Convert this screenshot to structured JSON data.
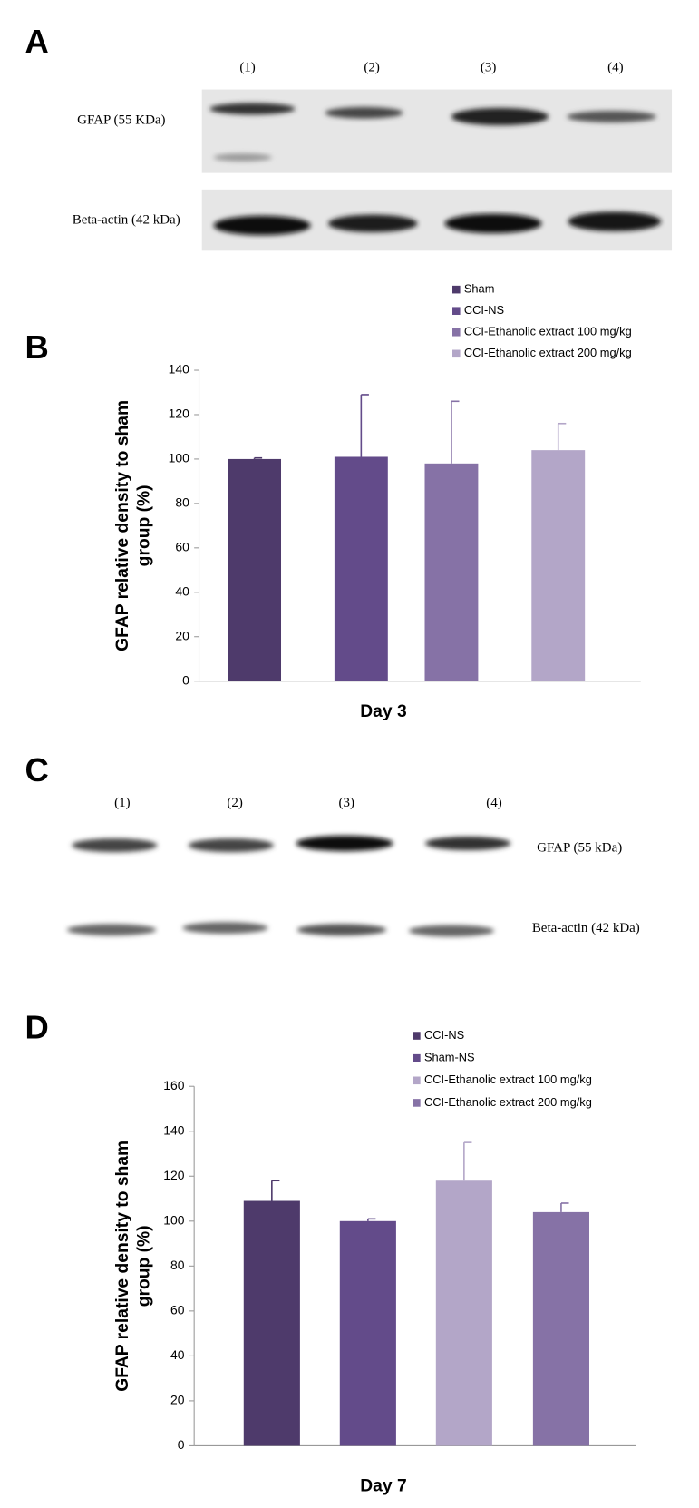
{
  "panels": [
    "A",
    "B",
    "C",
    "D"
  ],
  "blot_a": {
    "lanes": [
      "(1)",
      "(2)",
      "(3)",
      "(4)"
    ],
    "bands": [
      "GFAP (55 KDa)",
      "Beta-actin (42 kDa)"
    ]
  },
  "blot_c": {
    "lanes": [
      "(1)",
      "(2)",
      "(3)",
      "(4)"
    ],
    "bands": [
      "GFAP (55 kDa)",
      "Beta-actin (42 kDa)"
    ]
  },
  "chart_data": [
    {
      "type": "bar",
      "x_label": "Day 3",
      "y_label": [
        "GFAP relative density to sham",
        "group (%)"
      ],
      "categories": [
        null
      ],
      "series": [
        {
          "name": "Sham",
          "color": "#4e3a6b",
          "values": [
            100
          ],
          "errors": [
            0.5
          ]
        },
        {
          "name": "CCI-NS",
          "color": "#634b8a",
          "values": [
            101
          ],
          "errors": [
            28
          ]
        },
        {
          "name": "CCI-Ethanolic extract 100 mg/kg",
          "color": "#8672a6",
          "values": [
            98
          ],
          "errors": [
            28
          ]
        },
        {
          "name": "CCI-Ethanolic extract 200 mg/kg",
          "color": "#b3a6c8",
          "values": [
            104
          ],
          "errors": [
            12
          ]
        }
      ],
      "ylim": [
        0,
        140
      ],
      "yticks": [
        0,
        20,
        40,
        60,
        80,
        100,
        120,
        140
      ]
    },
    {
      "type": "bar",
      "x_label": "Day 7",
      "y_label": [
        "GFAP relative density to sham",
        "group (%)"
      ],
      "categories": [
        null
      ],
      "series": [
        {
          "name": "CCI-NS",
          "color": "#4e3a6b",
          "values": [
            109
          ],
          "errors": [
            9
          ]
        },
        {
          "name": "Sham-NS",
          "color": "#634b8a",
          "values": [
            100
          ],
          "errors": [
            1
          ]
        },
        {
          "name": "CCI-Ethanolic extract 100 mg/kg",
          "color": "#b3a6c8",
          "values": [
            118
          ],
          "errors": [
            17
          ]
        },
        {
          "name": "CCI-Ethanolic extract 200 mg/kg",
          "color": "#8672a6",
          "values": [
            104
          ],
          "errors": [
            4
          ]
        }
      ],
      "ylim": [
        0,
        160
      ],
      "yticks": [
        0,
        20,
        40,
        60,
        80,
        100,
        120,
        140,
        160
      ]
    }
  ]
}
